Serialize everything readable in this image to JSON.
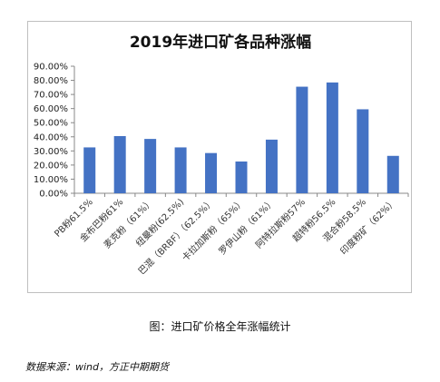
{
  "chart_data": {
    "type": "bar",
    "title": "2019年进口矿各品种涨幅",
    "categories": [
      "PB粉61.5%",
      "金布巴粉61%",
      "麦克粉（61%）",
      "纽曼粉(62.5%)",
      "巴混（BRBF）（62.5%）",
      "卡拉加斯粉（65%）",
      "罗伊山粉（61%）",
      "阿特拉斯粉57%",
      "超特粉56.5%",
      "混合粉58.5%",
      "印度粉矿（62%）"
    ],
    "series": [
      {
        "values": [
          32.5,
          40.5,
          38.5,
          32.5,
          28.5,
          22.5,
          38.0,
          75.5,
          78.5,
          59.5,
          26.5
        ]
      }
    ],
    "ylim": [
      0,
      90
    ],
    "yticks": [
      "0.00%",
      "10.00%",
      "20.00%",
      "30.00%",
      "40.00%",
      "50.00%",
      "60.00%",
      "70.00%",
      "80.00%",
      "90.00%"
    ],
    "bar_color": "#4472c4",
    "grid": false
  },
  "caption": "图：进口矿价格全年涨幅统计",
  "source": "数据来源：wind，方正中期期货"
}
